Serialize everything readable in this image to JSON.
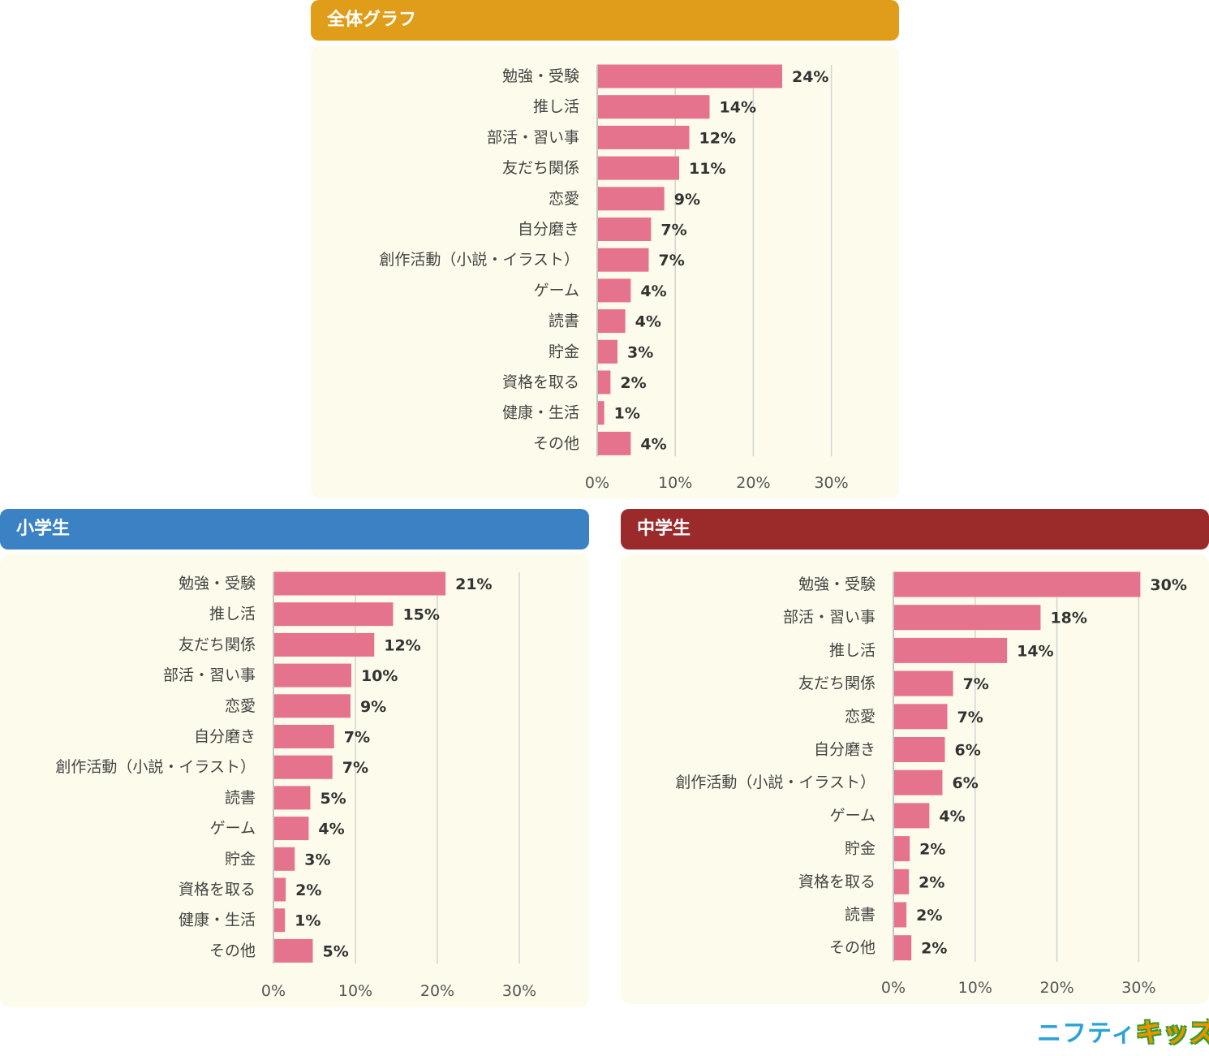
{
  "panels": {
    "overall": {
      "title": "全体グラフ",
      "color": "#e09d1a"
    },
    "elementary": {
      "title": "小学生",
      "color": "#3a82c4"
    },
    "junior": {
      "title": "中学生",
      "color": "#9b2a2b"
    }
  },
  "logo": {
    "text_a": "ニフティ",
    "text_b": "キッズ"
  },
  "colors": {
    "bar": "#e6738d",
    "grid": "#d4d4d4",
    "axis": "#c4c4c4"
  },
  "chart_data": [
    {
      "id": "overall",
      "type": "bar",
      "orientation": "horizontal",
      "title": "全体グラフ",
      "categories": [
        "勉強・受験",
        "推し活",
        "部活・習い事",
        "友だち関係",
        "恋愛",
        "自分磨き",
        "創作活動（小説・イラスト）",
        "ゲーム",
        "読書",
        "貯金",
        "資格を取る",
        "健康・生活",
        "その他"
      ],
      "values": [
        23.7,
        14.4,
        11.8,
        10.5,
        8.6,
        6.9,
        6.6,
        4.3,
        3.6,
        2.6,
        1.7,
        0.9,
        4.3
      ],
      "value_labels": [
        "24%",
        "14%",
        "12%",
        "11%",
        "9%",
        "7%",
        "7%",
        "4%",
        "4%",
        "3%",
        "2%",
        "1%",
        "4%"
      ],
      "xlim": [
        0,
        30
      ],
      "xticks": [
        0,
        10,
        20,
        30
      ],
      "xtick_labels": [
        "0%",
        "10%",
        "20%",
        "30%"
      ],
      "grid": true,
      "legend": "none"
    },
    {
      "id": "elementary",
      "type": "bar",
      "orientation": "horizontal",
      "title": "小学生",
      "categories": [
        "勉強・受験",
        "推し活",
        "友だち関係",
        "部活・習い事",
        "恋愛",
        "自分磨き",
        "創作活動（小説・イラスト）",
        "読書",
        "ゲーム",
        "貯金",
        "資格を取る",
        "健康・生活",
        "その他"
      ],
      "values": [
        21.0,
        14.6,
        12.3,
        9.5,
        9.4,
        7.4,
        7.2,
        4.5,
        4.3,
        2.6,
        1.5,
        1.4,
        4.8
      ],
      "value_labels": [
        "21%",
        "15%",
        "12%",
        "10%",
        "9%",
        "7%",
        "7%",
        "5%",
        "4%",
        "3%",
        "2%",
        "1%",
        "5%"
      ],
      "xlim": [
        0,
        30
      ],
      "xticks": [
        0,
        10,
        20,
        30
      ],
      "xtick_labels": [
        "0%",
        "10%",
        "20%",
        "30%"
      ],
      "grid": true,
      "legend": "none"
    },
    {
      "id": "junior",
      "type": "bar",
      "orientation": "horizontal",
      "title": "中学生",
      "categories": [
        "勉強・受験",
        "部活・習い事",
        "推し活",
        "友だち関係",
        "恋愛",
        "自分磨き",
        "創作活動（小説・イラスト）",
        "ゲーム",
        "貯金",
        "資格を取る",
        "読書",
        "その他"
      ],
      "values": [
        30.2,
        18.0,
        13.9,
        7.3,
        6.6,
        6.3,
        6.0,
        4.4,
        2.0,
        1.9,
        1.6,
        2.2
      ],
      "value_labels": [
        "30%",
        "18%",
        "14%",
        "7%",
        "7%",
        "6%",
        "6%",
        "4%",
        "2%",
        "2%",
        "2%",
        "2%"
      ],
      "xlim": [
        0,
        30
      ],
      "xticks": [
        0,
        10,
        20,
        30
      ],
      "xtick_labels": [
        "0%",
        "10%",
        "20%",
        "30%"
      ],
      "grid": true,
      "legend": "none"
    }
  ]
}
